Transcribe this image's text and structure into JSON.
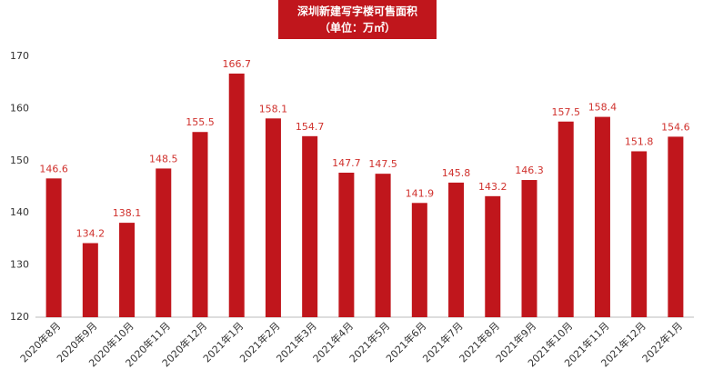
{
  "chart_data": {
    "type": "bar",
    "title": "深圳新建写字楼可售面积",
    "subtitle": "（单位：万㎡）",
    "categories": [
      "2020年8月",
      "2020年9月",
      "2020年10月",
      "2020年11月",
      "2020年12月",
      "2021年1月",
      "2021年2月",
      "2021年3月",
      "2021年4月",
      "2021年5月",
      "2021年6月",
      "2021年7月",
      "2021年8月",
      "2021年9月",
      "2021年10月",
      "2021年11月",
      "2021年12月",
      "2022年1月"
    ],
    "values": [
      146.6,
      134.2,
      138.1,
      148.5,
      155.5,
      166.7,
      158.1,
      154.7,
      147.7,
      147.5,
      141.9,
      145.8,
      143.2,
      146.3,
      157.5,
      158.4,
      151.8,
      154.6
    ],
    "color": "#c0161c",
    "ylim": [
      120,
      170
    ],
    "yticks": [
      120,
      130,
      140,
      150,
      160,
      170
    ],
    "grid": false
  }
}
